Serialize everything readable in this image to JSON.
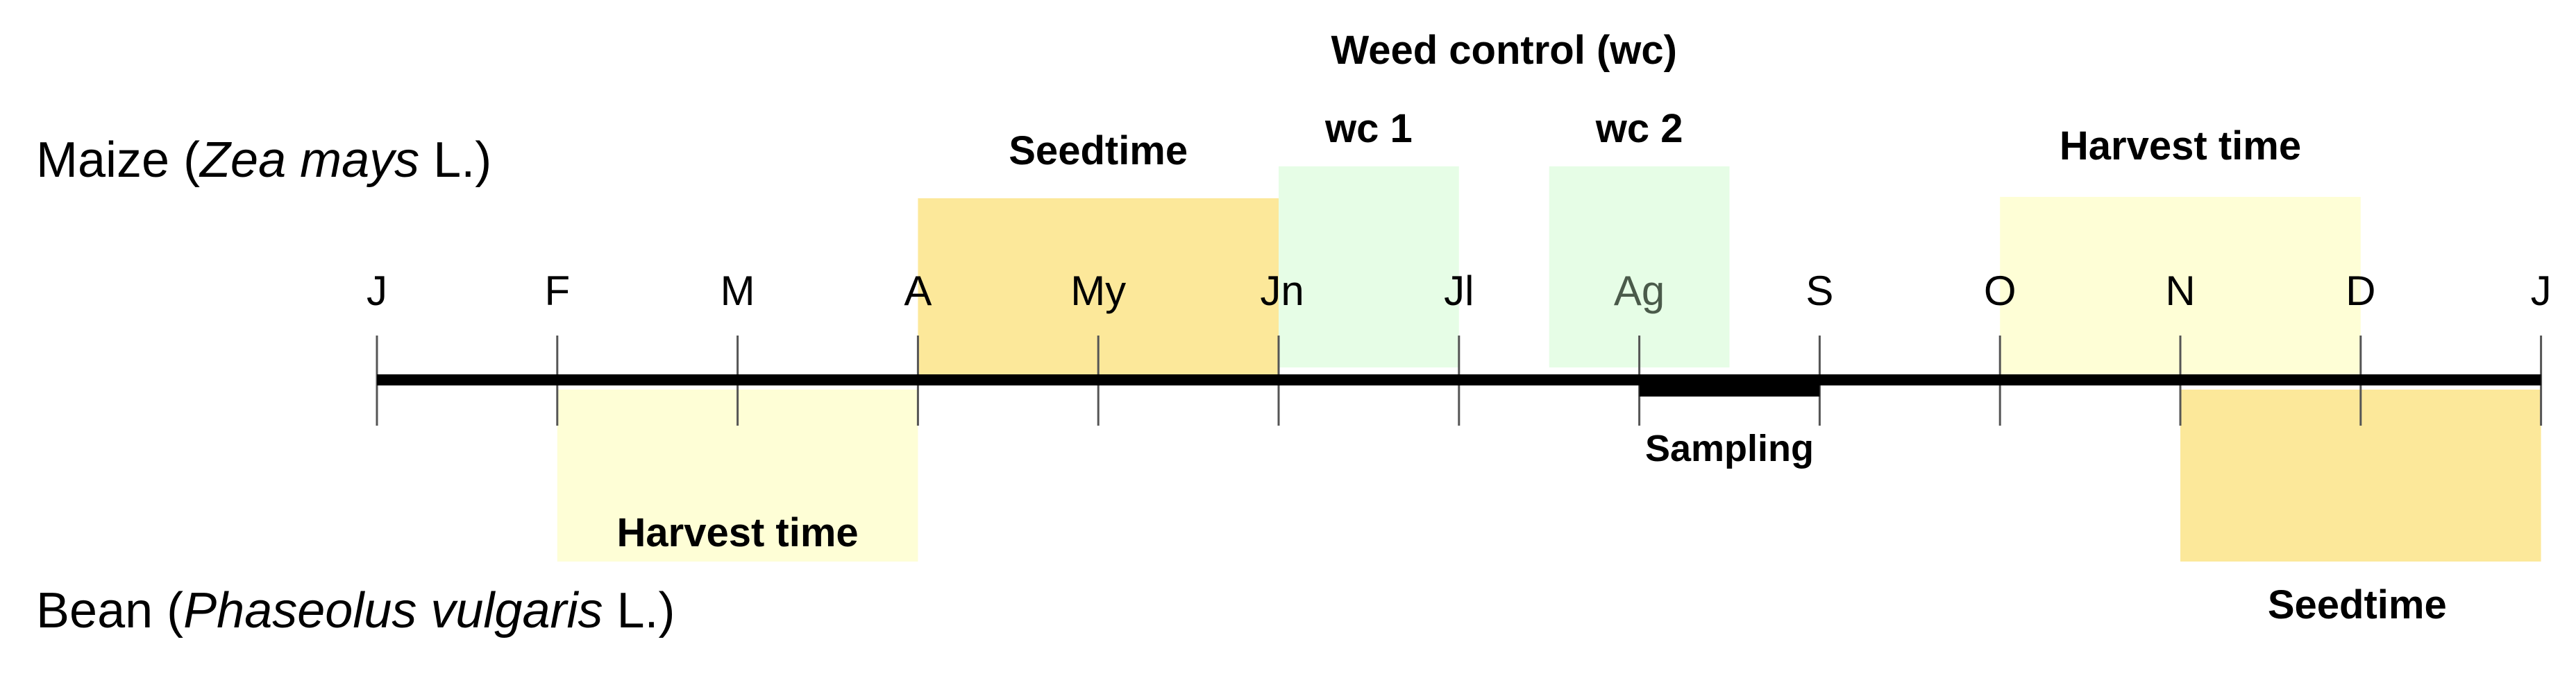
{
  "crops": {
    "maize": {
      "name": "Maize (",
      "scientific": "Zea mays",
      "suffix": " L.)"
    },
    "bean": {
      "name": "Bean (",
      "scientific": "Phaseolus vulgaris",
      "suffix": " L.)"
    }
  },
  "months": [
    "J",
    "F",
    "M",
    "A",
    "My",
    "Jn",
    "Jl",
    "Ag",
    "S",
    "O",
    "N",
    "D",
    "J"
  ],
  "weed_control": {
    "title": "Weed control (wc)",
    "wc1": {
      "label": "wc 1",
      "start_month": 5.0,
      "end_month": 6.0
    },
    "wc2": {
      "label": "wc 2",
      "start_month": 6.5,
      "end_month": 7.5
    }
  },
  "maize_periods": [
    {
      "label": "Seedtime",
      "start_month": 3.0,
      "end_month": 5.0,
      "color": "#FCE89A"
    },
    {
      "label": "Harvest time",
      "start_month": 9.0,
      "end_month": 11.0,
      "color": "#FEFED6"
    }
  ],
  "bean_periods": [
    {
      "label": "Harvest time",
      "start_month": 1.0,
      "end_month": 3.0,
      "color": "#FEFED6"
    },
    {
      "label": "Seedtime",
      "start_month": 10.0,
      "end_month": 12.0,
      "color": "#FCE89A"
    }
  ],
  "sampling": {
    "label": "Sampling",
    "start_month": 7.0,
    "end_month": 8.0
  },
  "colors": {
    "seedtime": "#FCE89A",
    "harvest": "#FEFED6",
    "weed_control": "#E6FDE6",
    "axis": "#000000"
  }
}
